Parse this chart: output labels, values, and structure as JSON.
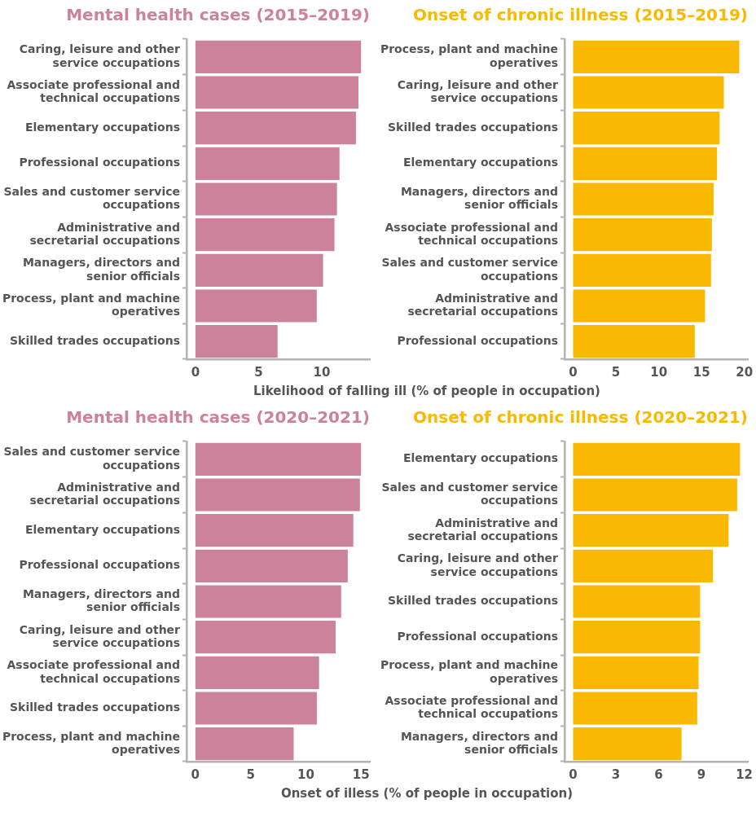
{
  "chart_data": [
    {
      "type": "bar",
      "orientation": "horizontal",
      "title": "Mental health cases (2015–2019)",
      "xlabel": "Likelihood of falling ill (% of people in occupation)",
      "categories": [
        "Caring, leisure and other service occupations",
        "Associate professional and technical occupations",
        "Elementary occupations",
        "Professional occupations",
        "Sales and customer service occupations",
        "Administrative and secretarial occupations",
        "Managers, directors and senior officials",
        "Process, plant and machine operatives",
        "Skilled trades occupations"
      ],
      "series": [
        {
          "color": "#cd829c",
          "values": [
            13.1,
            12.9,
            12.7,
            11.4,
            11.2,
            11.0,
            10.1,
            9.6,
            6.5
          ]
        }
      ],
      "xlim": [
        -0.7,
        13.8
      ],
      "xticks": [
        0,
        5,
        10
      ]
    },
    {
      "type": "bar",
      "orientation": "horizontal",
      "title": "Onset of chronic illness (2015–2019)",
      "categories": [
        "Process, plant and machine operatives",
        "Caring, leisure and other service occupations",
        "Skilled trades occupations",
        "Elementary occupations",
        "Managers, directors and senior officials",
        "Associate professional and technical occupations",
        "Sales and customer service occupations",
        "Administrative and secretarial occupations",
        "Professional occupations"
      ],
      "series": [
        {
          "color": "#f9b900",
          "values": [
            19.4,
            17.6,
            17.1,
            16.8,
            16.4,
            16.2,
            16.1,
            15.4,
            14.2
          ]
        }
      ],
      "xlim": [
        -1.0,
        20.4
      ],
      "xticks": [
        0,
        5,
        10,
        15,
        20
      ]
    },
    {
      "type": "bar",
      "orientation": "horizontal",
      "title": "Mental health cases (2020–2021)",
      "xlabel": "Onset of illess (% of people in occupation)",
      "categories": [
        "Sales and customer service occupations",
        "Administrative and secretarial occupations",
        "Elementary occupations",
        "Professional occupations",
        "Managers, directors and senior officials",
        "Caring, leisure and other service occupations",
        "Associate professional and technical occupations",
        "Skilled trades occupations",
        "Process, plant and machine operatives"
      ],
      "series": [
        {
          "color": "#cd829c",
          "values": [
            15.0,
            14.9,
            14.3,
            13.8,
            13.2,
            12.7,
            11.2,
            11.0,
            8.9
          ]
        }
      ],
      "xlim": [
        -0.8,
        15.8
      ],
      "xticks": [
        0,
        5,
        10,
        15
      ]
    },
    {
      "type": "bar",
      "orientation": "horizontal",
      "title": "Onset of chronic illness (2020–2021)",
      "categories": [
        "Elementary occupations",
        "Sales and customer service occupations",
        "Administrative and secretarial occupations",
        "Caring, leisure and other service occupations",
        "Skilled trades occupations",
        "Professional occupations",
        "Process, plant and machine operatives",
        "Associate professional and technical occupations",
        "Managers, directors and senior officials"
      ],
      "series": [
        {
          "color": "#f9b900",
          "values": [
            11.7,
            11.5,
            10.9,
            9.8,
            8.9,
            8.9,
            8.8,
            8.7,
            7.6
          ]
        }
      ],
      "xlim": [
        -0.6,
        12.25
      ],
      "xticks": [
        0,
        3,
        6,
        9,
        12
      ]
    }
  ]
}
